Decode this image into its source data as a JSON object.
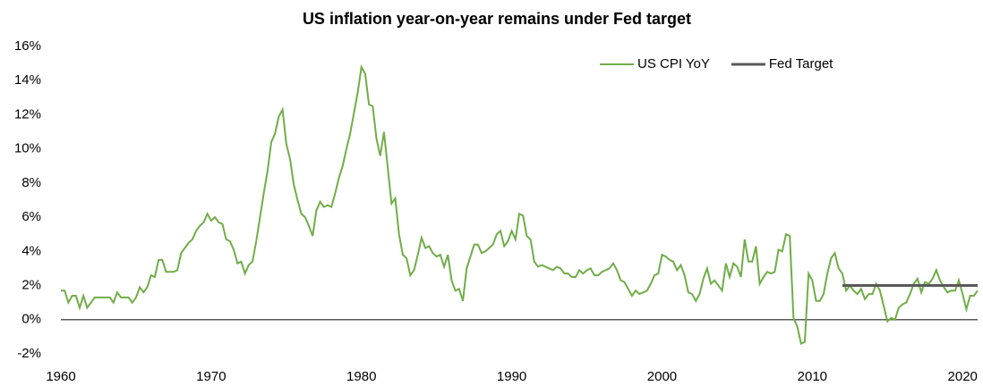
{
  "chart_data": {
    "type": "line",
    "title": "US inflation year-on-year remains under Fed target",
    "legend": "upper right",
    "xlim": [
      1960,
      2021
    ],
    "xticks": [
      1960,
      1970,
      1980,
      1990,
      2000,
      2010,
      2020
    ],
    "ylim": [
      -2,
      16
    ],
    "yticks": [
      {
        "value": -2,
        "label": "-2%"
      },
      {
        "value": 0,
        "label": "0%"
      },
      {
        "value": 2,
        "label": "2%"
      },
      {
        "value": 4,
        "label": "4%"
      },
      {
        "value": 6,
        "label": "6%"
      },
      {
        "value": 8,
        "label": "8%"
      },
      {
        "value": 10,
        "label": "10%"
      },
      {
        "value": 12,
        "label": "12%"
      },
      {
        "value": 14,
        "label": "14%"
      },
      {
        "value": 16,
        "label": "16%"
      }
    ],
    "series": [
      {
        "name": "US CPI YoY",
        "color": "#70ad47",
        "x": [
          1960,
          1960.25,
          1960.5,
          1960.75,
          1961,
          1961.25,
          1961.5,
          1961.75,
          1962,
          1962.25,
          1962.5,
          1962.75,
          1963,
          1963.25,
          1963.5,
          1963.75,
          1964,
          1964.25,
          1964.5,
          1964.75,
          1965,
          1965.25,
          1965.5,
          1965.75,
          1966,
          1966.25,
          1966.5,
          1966.75,
          1967,
          1967.25,
          1967.5,
          1967.75,
          1968,
          1968.25,
          1968.5,
          1968.75,
          1969,
          1969.25,
          1969.5,
          1969.75,
          1970,
          1970.25,
          1970.5,
          1970.75,
          1971,
          1971.25,
          1971.5,
          1971.75,
          1972,
          1972.25,
          1972.5,
          1972.75,
          1973,
          1973.25,
          1973.5,
          1973.75,
          1974,
          1974.25,
          1974.5,
          1974.75,
          1975,
          1975.25,
          1975.5,
          1975.75,
          1976,
          1976.25,
          1976.5,
          1976.75,
          1977,
          1977.25,
          1977.5,
          1977.75,
          1978,
          1978.25,
          1978.5,
          1978.75,
          1979,
          1979.25,
          1979.5,
          1979.75,
          1980,
          1980.25,
          1980.5,
          1980.75,
          1981,
          1981.25,
          1981.5,
          1981.75,
          1982,
          1982.25,
          1982.5,
          1982.75,
          1983,
          1983.25,
          1983.5,
          1983.75,
          1984,
          1984.25,
          1984.5,
          1984.75,
          1985,
          1985.25,
          1985.5,
          1985.75,
          1986,
          1986.25,
          1986.5,
          1986.75,
          1987,
          1987.25,
          1987.5,
          1987.75,
          1988,
          1988.25,
          1988.5,
          1988.75,
          1989,
          1989.25,
          1989.5,
          1989.75,
          1990,
          1990.25,
          1990.5,
          1990.75,
          1991,
          1991.25,
          1991.5,
          1991.75,
          1992,
          1992.25,
          1992.5,
          1992.75,
          1993,
          1993.25,
          1993.5,
          1993.75,
          1994,
          1994.25,
          1994.5,
          1994.75,
          1995,
          1995.25,
          1995.5,
          1995.75,
          1996,
          1996.25,
          1996.5,
          1996.75,
          1997,
          1997.25,
          1997.5,
          1997.75,
          1998,
          1998.25,
          1998.5,
          1998.75,
          1999,
          1999.25,
          1999.5,
          1999.75,
          2000,
          2000.25,
          2000.5,
          2000.75,
          2001,
          2001.25,
          2001.5,
          2001.75,
          2002,
          2002.25,
          2002.5,
          2002.75,
          2003,
          2003.25,
          2003.5,
          2003.75,
          2004,
          2004.25,
          2004.5,
          2004.75,
          2005,
          2005.25,
          2005.5,
          2005.75,
          2006,
          2006.25,
          2006.5,
          2006.75,
          2007,
          2007.25,
          2007.5,
          2007.75,
          2008,
          2008.25,
          2008.5,
          2008.75,
          2009,
          2009.25,
          2009.5,
          2009.75,
          2010,
          2010.25,
          2010.5,
          2010.75,
          2011,
          2011.25,
          2011.5,
          2011.75,
          2012,
          2012.25,
          2012.5,
          2012.75,
          2013,
          2013.25,
          2013.5,
          2013.75,
          2014,
          2014.25,
          2014.5,
          2014.75,
          2015,
          2015.25,
          2015.5,
          2015.75,
          2016,
          2016.25,
          2016.5,
          2016.75,
          2017,
          2017.25,
          2017.5,
          2017.75,
          2018,
          2018.25,
          2018.5,
          2018.75,
          2019,
          2019.25,
          2019.5,
          2019.75,
          2020,
          2020.25,
          2020.5,
          2020.75,
          2021
        ],
        "values": [
          1.7,
          1.7,
          1.0,
          1.4,
          1.4,
          0.7,
          1.4,
          0.7,
          1.0,
          1.3,
          1.3,
          1.3,
          1.3,
          1.3,
          1.0,
          1.6,
          1.3,
          1.3,
          1.3,
          1.0,
          1.3,
          1.9,
          1.6,
          1.9,
          2.6,
          2.5,
          3.5,
          3.5,
          2.8,
          2.8,
          2.8,
          2.9,
          3.9,
          4.2,
          4.5,
          4.7,
          5.2,
          5.5,
          5.7,
          6.2,
          5.8,
          6.0,
          5.7,
          5.6,
          4.7,
          4.6,
          4.1,
          3.3,
          3.4,
          2.7,
          3.2,
          3.4,
          4.6,
          6.0,
          7.4,
          8.7,
          10.4,
          10.9,
          11.9,
          12.3,
          10.3,
          9.4,
          7.9,
          7.0,
          6.2,
          6.0,
          5.5,
          4.9,
          6.4,
          6.9,
          6.6,
          6.7,
          6.6,
          7.4,
          8.3,
          9.0,
          10.0,
          10.9,
          12.1,
          13.3,
          14.8,
          14.4,
          12.6,
          12.5,
          10.6,
          9.6,
          11.0,
          8.9,
          6.8,
          7.1,
          5.0,
          3.8,
          3.6,
          2.6,
          2.9,
          3.8,
          4.8,
          4.2,
          4.3,
          3.9,
          3.7,
          3.8,
          3.1,
          3.8,
          2.3,
          1.7,
          1.8,
          1.1,
          3.0,
          3.7,
          4.4,
          4.4,
          3.9,
          4.0,
          4.2,
          4.4,
          5.0,
          5.2,
          4.3,
          4.6,
          5.2,
          4.7,
          6.2,
          6.1,
          4.9,
          4.7,
          3.4,
          3.1,
          3.2,
          3.1,
          3.0,
          2.9,
          3.1,
          3.0,
          2.7,
          2.7,
          2.5,
          2.5,
          2.9,
          2.7,
          2.9,
          3.0,
          2.6,
          2.6,
          2.8,
          2.9,
          3.0,
          3.3,
          2.9,
          2.3,
          2.2,
          1.8,
          1.4,
          1.7,
          1.5,
          1.6,
          1.7,
          2.1,
          2.6,
          2.7,
          3.8,
          3.7,
          3.5,
          3.4,
          2.9,
          3.2,
          2.6,
          1.6,
          1.5,
          1.1,
          1.5,
          2.4,
          3.0,
          2.1,
          2.3,
          2.0,
          1.7,
          3.3,
          2.5,
          3.3,
          3.1,
          2.5,
          4.7,
          3.4,
          3.4,
          4.3,
          2.1,
          2.5,
          2.8,
          2.7,
          2.8,
          4.1,
          4.0,
          5.0,
          4.9,
          0.1,
          -0.4,
          -1.4,
          -1.3,
          2.7,
          2.3,
          1.1,
          1.1,
          1.5,
          2.7,
          3.6,
          3.9,
          3.0,
          2.7,
          1.7,
          2.0,
          1.7,
          1.5,
          1.8,
          1.2,
          1.5,
          1.5,
          2.1,
          1.7,
          0.8,
          -0.1,
          0.1,
          0.0,
          0.7,
          0.9,
          1.0,
          1.5,
          2.1,
          2.4,
          1.6,
          2.2,
          2.1,
          2.4,
          2.9,
          2.3,
          1.9,
          1.6,
          1.7,
          1.7,
          2.3,
          1.5,
          0.6,
          1.4,
          1.4,
          1.7
        ]
      },
      {
        "name": "Fed Target",
        "color": "#595959",
        "x": [
          2012,
          2021
        ],
        "values": [
          2,
          2
        ]
      }
    ]
  }
}
